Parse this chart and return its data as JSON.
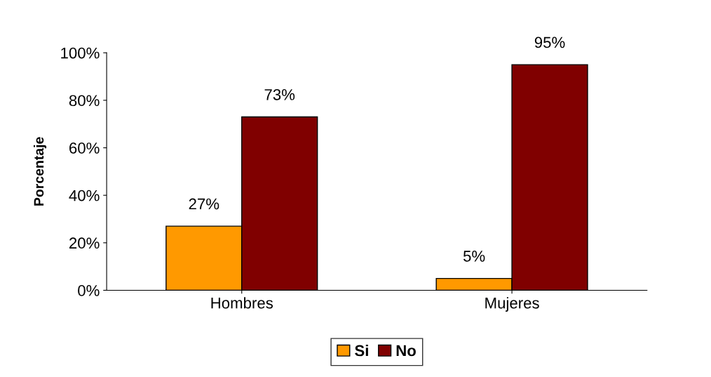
{
  "chart_data": {
    "type": "bar",
    "ylabel": "Porcentaje",
    "categories": [
      "Hombres",
      "Mujeres"
    ],
    "series": [
      {
        "name": "Si",
        "color": "#ff9900",
        "values": [
          27,
          5
        ],
        "value_labels": [
          "27%",
          "5%"
        ]
      },
      {
        "name": "No",
        "color": "#800000",
        "values": [
          73,
          95
        ],
        "value_labels": [
          "73%",
          "95%"
        ]
      }
    ],
    "ylim": [
      0,
      100
    ],
    "yticks": [
      {
        "value": 0,
        "label": "0%"
      },
      {
        "value": 20,
        "label": "20%"
      },
      {
        "value": 40,
        "label": "40%"
      },
      {
        "value": 60,
        "label": "60%"
      },
      {
        "value": 80,
        "label": "80%"
      },
      {
        "value": 100,
        "label": "100%"
      }
    ],
    "grid": false,
    "legend": "bottom"
  }
}
